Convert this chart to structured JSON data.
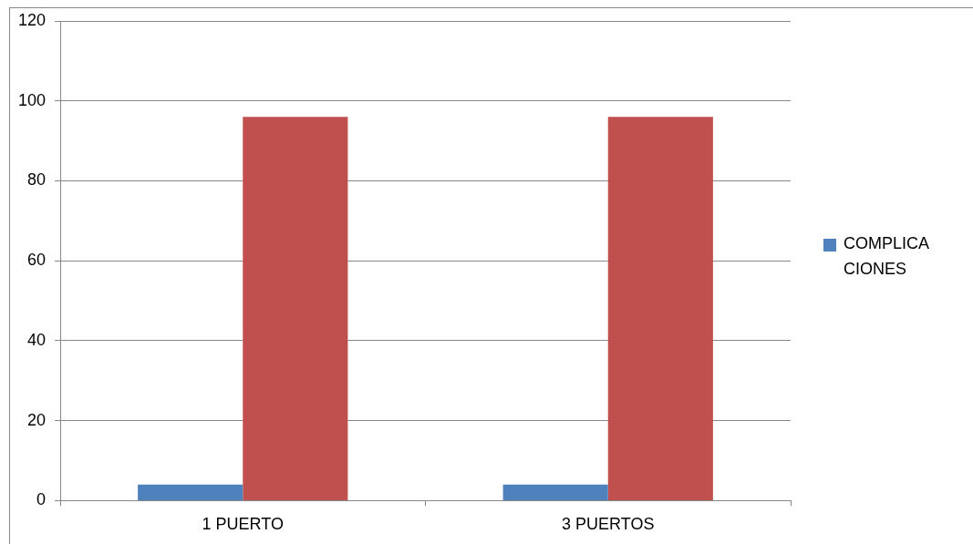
{
  "chart_data": {
    "type": "bar",
    "categories": [
      "1 PUERTO",
      "3 PUERTOS"
    ],
    "series": [
      {
        "name": "COMPLICACIONES",
        "color": "#4f81bd",
        "values": [
          4,
          4
        ]
      },
      {
        "color": "#c0504d",
        "values": [
          96,
          96
        ]
      }
    ],
    "ylim": [
      0,
      120
    ],
    "yticks": [
      0,
      20,
      40,
      60,
      80,
      100,
      120
    ],
    "grid": "y",
    "legend": "right"
  }
}
